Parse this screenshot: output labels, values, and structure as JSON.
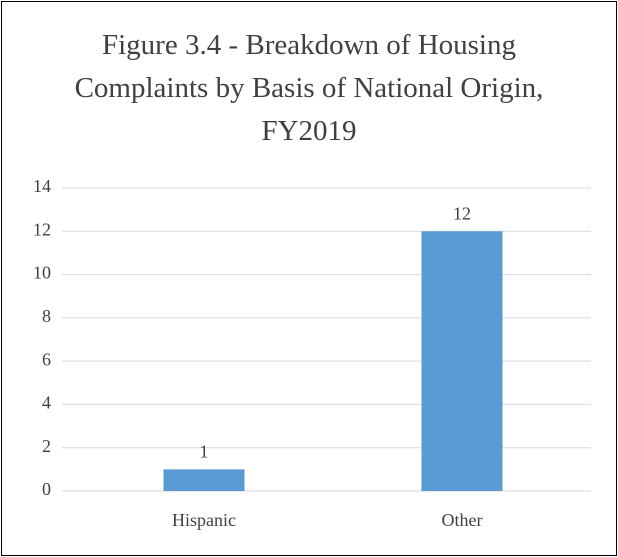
{
  "chart_data": {
    "type": "bar",
    "title": "Figure 3.4 - Breakdown of Housing Complaints by Basis of National Origin, FY2019",
    "categories": [
      "Hispanic",
      "Other"
    ],
    "values": [
      1,
      12
    ],
    "color": "#5b9bd5",
    "ylim": [
      0,
      14
    ],
    "yticks": [
      0,
      2,
      4,
      6,
      8,
      10,
      12,
      14
    ],
    "grid": true
  }
}
